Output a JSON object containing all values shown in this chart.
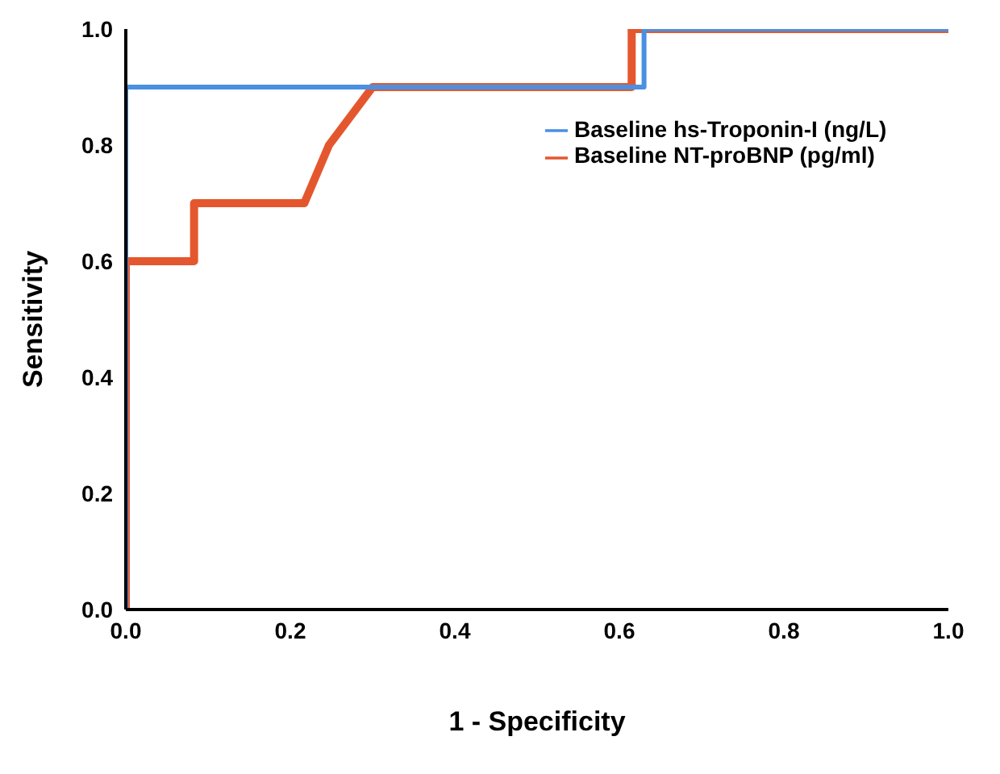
{
  "chart_data": {
    "type": "line",
    "xlabel": "1 - Specificity",
    "ylabel": "Sensitivity",
    "xlim": [
      0,
      1
    ],
    "ylim": [
      0,
      1
    ],
    "xticks": [
      {
        "value": 0,
        "label": "0.0"
      },
      {
        "value": 0.2,
        "label": "0.2"
      },
      {
        "value": 0.4,
        "label": "0.4"
      },
      {
        "value": 0.6,
        "label": "0.6"
      },
      {
        "value": 0.8,
        "label": "0.8"
      },
      {
        "value": 1,
        "label": "1.0"
      }
    ],
    "yticks": [
      {
        "value": 0,
        "label": "0.0"
      },
      {
        "value": 0.2,
        "label": "0.2"
      },
      {
        "value": 0.4,
        "label": "0.4"
      },
      {
        "value": 0.6,
        "label": "0.6"
      },
      {
        "value": 0.8,
        "label": "0.8"
      },
      {
        "value": 1,
        "label": "1.0"
      }
    ],
    "series": [
      {
        "name": "Baseline hs-Troponin-I (ng/L)",
        "color": "#4a90e2",
        "x": [
          0,
          0,
          0.63,
          0.63,
          1
        ],
        "values": [
          0,
          0.9,
          0.9,
          1,
          1
        ]
      },
      {
        "name": "Baseline NT-proBNP (pg/ml)",
        "color": "#e4572e",
        "x": [
          0,
          0,
          0.083,
          0.083,
          0.217,
          0.247,
          0.3,
          0.615,
          0.615,
          1
        ],
        "values": [
          0,
          0.6,
          0.6,
          0.7,
          0.7,
          0.8,
          0.9,
          0.9,
          1,
          1
        ]
      }
    ],
    "grid": false,
    "legend": "top right",
    "marker": "none",
    "line_style": "solid"
  }
}
